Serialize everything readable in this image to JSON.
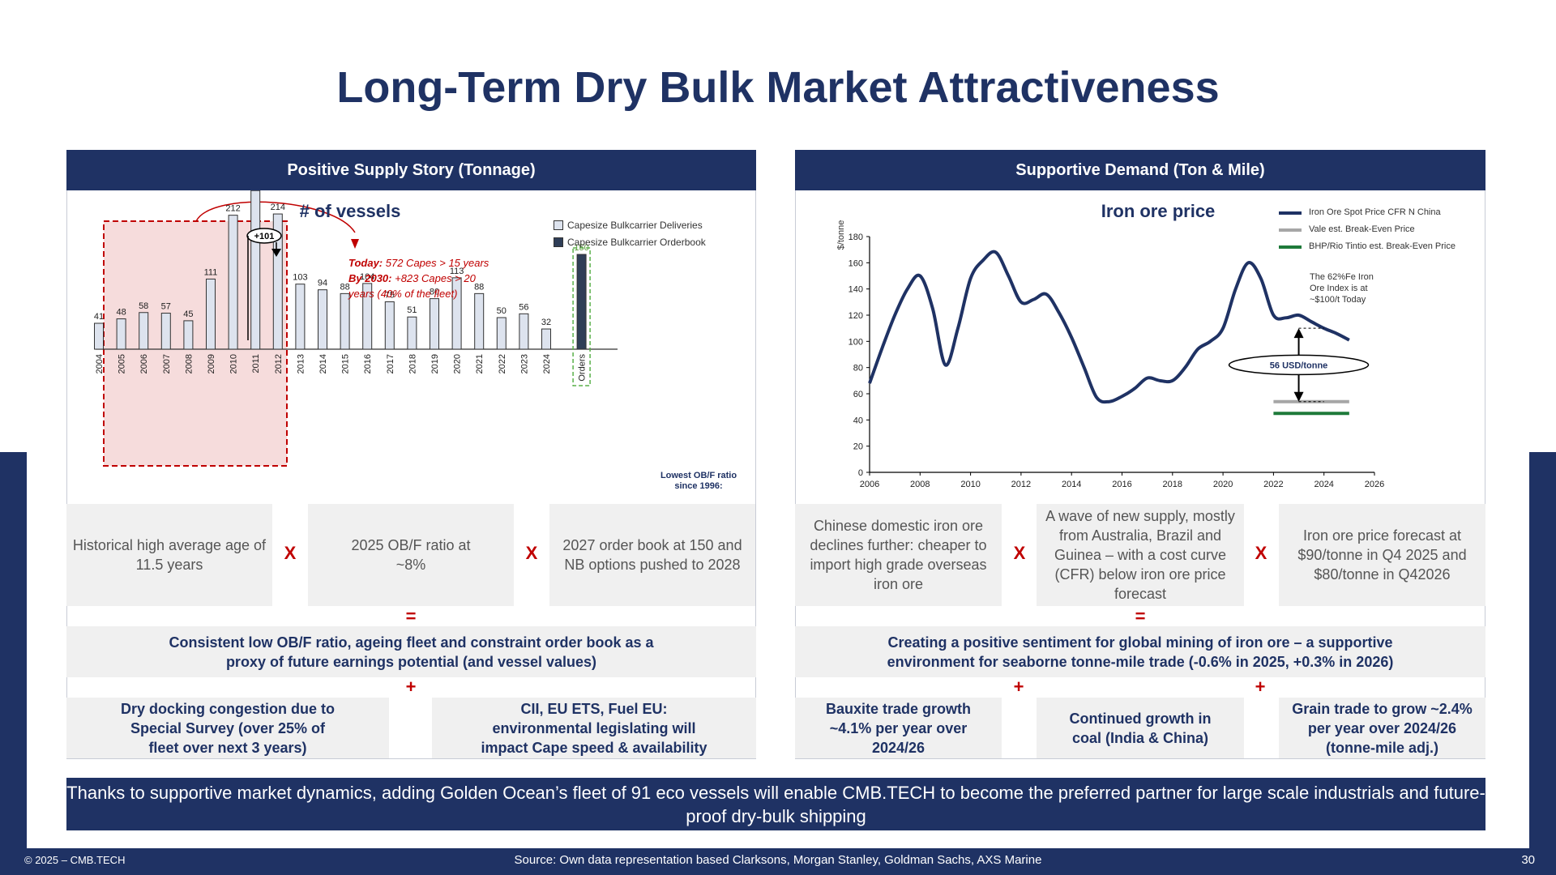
{
  "title": "Long-Term Dry Bulk Market Attractiveness",
  "left_panel": {
    "header": "Positive Supply Story (Tonnage)",
    "chart_title": "# of vessels",
    "legend": [
      "Capesize Bulkcarrier Deliveries",
      "Capesize Bulkcarrier Orderbook"
    ],
    "annotation_lines": [
      {
        "bold": "Today:",
        "rest": " 572 Capes > 15 years"
      },
      {
        "bold": "By 2030:",
        "rest": " +823 Capes > 20"
      },
      {
        "bold": "",
        "rest": "years (40% of the fleet)"
      }
    ],
    "callout": "+101",
    "orders_label": "Orders",
    "ob_note": [
      "Lowest OB/F ratio",
      "since 1996:"
    ],
    "boxes": {
      "b1": "Historical high average age of 11.5 years",
      "b2": "2025 OB/F ratio at ~8%",
      "b3": "2027 order book at 150 and NB options pushed to 2028",
      "result": "Consistent low OB/F ratio, ageing fleet and constraint order book as a proxy of future earnings potential (and vessel values)",
      "b4": "Dry docking congestion due to Special Survey (over 25% of fleet over next 3 years)",
      "b5": "CII, EU ETS, Fuel EU: environmental legislating will impact Cape speed & availability"
    },
    "ops": {
      "x1": "X",
      "x2": "X",
      "eq": "=",
      "plus": "+"
    }
  },
  "right_panel": {
    "header": "Supportive Demand (Ton & Mile)",
    "chart_title": "Iron ore price",
    "legend": [
      "Iron Ore Spot Price CFR N China",
      "Vale est. Break-Even Price",
      "BHP/Rio Tintio est. Break-Even Price"
    ],
    "ylabel": "$/tonne",
    "note": [
      "The 62%Fe Iron",
      "Ore Index is at",
      "~$100/t Today"
    ],
    "gap_label": "56 USD/tonne",
    "boxes": {
      "b1": "Chinese domestic iron ore declines further: cheaper to import high grade overseas iron ore",
      "b2": "A wave of new supply, mostly from Australia, Brazil and Guinea – with a cost curve (CFR) below iron ore price forecast",
      "b3": "Iron ore price forecast at $90/tonne in Q4 2025 and $80/tonne in Q42026",
      "result": "Creating a positive sentiment for global mining of iron ore – a supportive environment for seaborne tonne-mile trade (-0.6% in 2025, +0.3% in 2026)",
      "b4": "Bauxite trade growth ~4.1% per year over 2024/26",
      "b5": "Continued growth in coal (India & China)",
      "b6": "Grain trade to grow ~2.4% per year over 2024/26 (tonne-mile adj.)"
    },
    "ops": {
      "x1": "X",
      "x2": "X",
      "eq": "=",
      "plus1": "+",
      "plus2": "+"
    }
  },
  "bottom_banner": "Thanks to supportive market dynamics, adding Golden Ocean’s fleet of 91 eco vessels will enable CMB.TECH to become the preferred partner for large scale industrials and future-proof dry-bulk shipping",
  "footer": {
    "copyright": "© 2025 – CMB.TECH",
    "source": "Source:  Own data representation based Clarksons, Morgan Stanley, Goldman Sachs, AXS Marine",
    "page": "30"
  },
  "colors": {
    "navy": "#1f3264",
    "red": "#c00000",
    "light_bar": "#dde3ee",
    "dark_bar": "#2f3e57",
    "vale": "#a6a6a6",
    "bhp": "#1e7a3a"
  },
  "chart_data": [
    {
      "type": "bar",
      "title": "# of vessels",
      "categories": [
        "2004",
        "2005",
        "2006",
        "2007",
        "2008",
        "2009",
        "2010",
        "2011",
        "2012",
        "2013",
        "2014",
        "2015",
        "2016",
        "2017",
        "2018",
        "2019",
        "2020",
        "2021",
        "2022",
        "2023",
        "2024",
        "Orders"
      ],
      "series": [
        {
          "name": "Capesize Bulkcarrier Deliveries",
          "values": [
            41,
            48,
            58,
            57,
            45,
            111,
            212,
            251,
            214,
            103,
            94,
            88,
            104,
            75,
            51,
            80,
            113,
            88,
            50,
            56,
            32,
            null
          ]
        },
        {
          "name": "Capesize Bulkcarrier Orderbook",
          "values": [
            null,
            null,
            null,
            null,
            null,
            null,
            null,
            null,
            null,
            null,
            null,
            null,
            null,
            null,
            null,
            null,
            null,
            null,
            null,
            null,
            null,
            150
          ]
        }
      ],
      "legend": "top-right"
    },
    {
      "type": "line",
      "title": "Iron ore price",
      "ylabel": "$/tonne",
      "xlim": [
        2006,
        2026
      ],
      "ylim": [
        0,
        180
      ],
      "xticks": [
        2006,
        2008,
        2010,
        2012,
        2014,
        2016,
        2018,
        2020,
        2022,
        2024,
        2026
      ],
      "yticks": [
        0,
        20,
        40,
        60,
        80,
        100,
        120,
        140,
        160,
        180
      ],
      "series": [
        {
          "name": "Iron Ore Spot Price CFR N China",
          "x": [
            2006,
            2006.5,
            2007,
            2007.5,
            2008,
            2008.5,
            2009,
            2009.5,
            2010,
            2010.5,
            2011,
            2011.5,
            2012,
            2012.5,
            2013,
            2013.5,
            2014,
            2014.5,
            2015,
            2015.5,
            2016,
            2016.5,
            2017,
            2017.5,
            2018,
            2018.5,
            2019,
            2019.5,
            2020,
            2020.5,
            2021,
            2021.5,
            2022,
            2022.5,
            2023,
            2023.5,
            2024,
            2024.5,
            2025
          ],
          "y": [
            68,
            95,
            120,
            140,
            150,
            125,
            82,
            110,
            148,
            162,
            168,
            150,
            130,
            132,
            136,
            122,
            103,
            80,
            57,
            54,
            58,
            64,
            72,
            70,
            70,
            80,
            94,
            100,
            110,
            140,
            160,
            148,
            120,
            118,
            120,
            115,
            110,
            106,
            101
          ]
        },
        {
          "name": "Vale est. Break-Even Price",
          "x": [
            2022,
            2025
          ],
          "y": [
            54,
            54
          ]
        },
        {
          "name": "BHP/Rio Tintio est. Break-Even Price",
          "x": [
            2022,
            2025
          ],
          "y": [
            45,
            45
          ]
        }
      ],
      "legend": "top-right"
    }
  ]
}
